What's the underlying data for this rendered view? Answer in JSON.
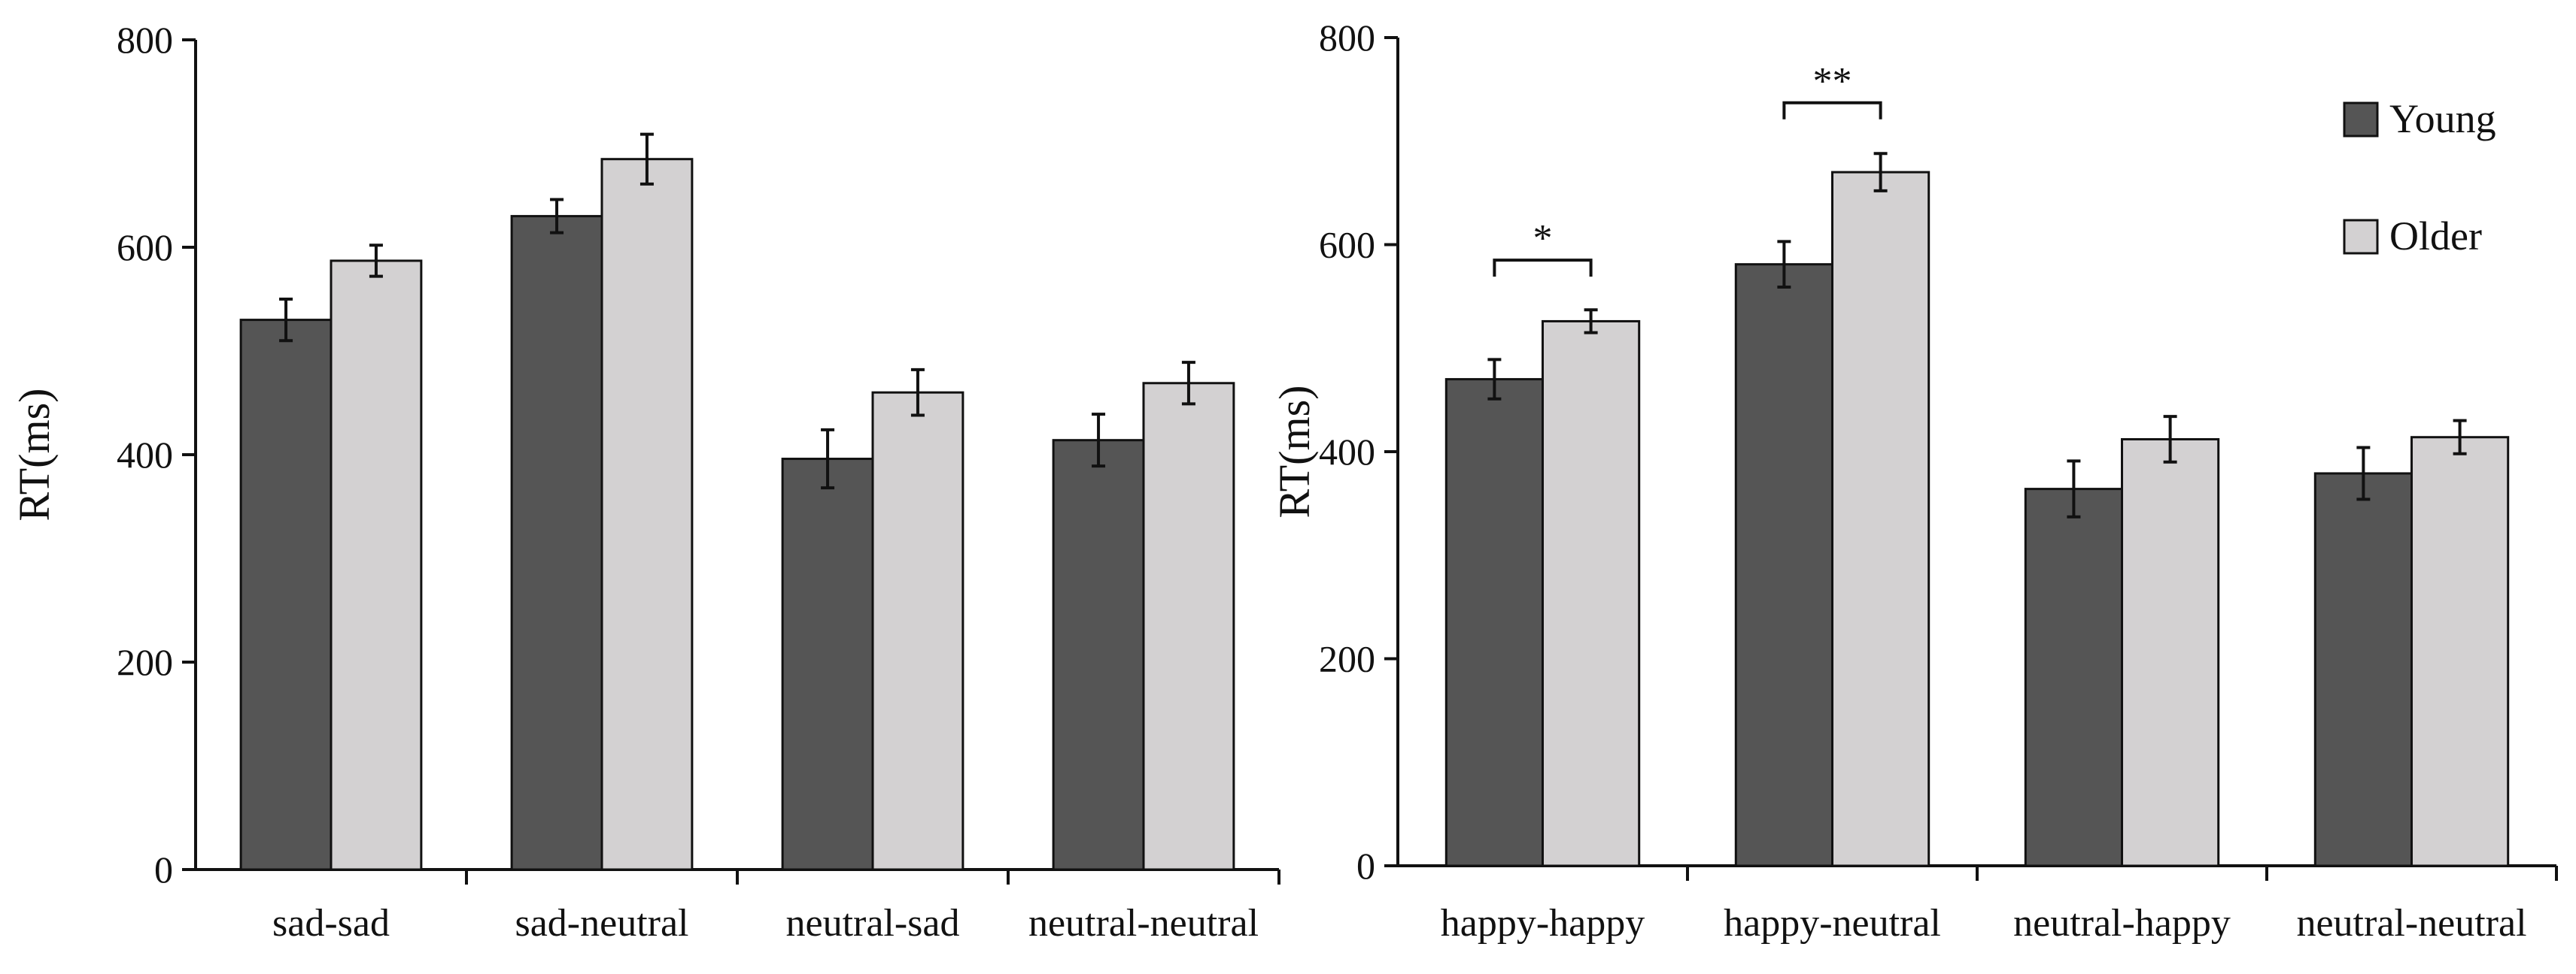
{
  "colors": {
    "young": "#555555",
    "older": "#d3d1d2",
    "stroke": "#111111"
  },
  "legend": [
    {
      "name": "Young",
      "color": "#555555"
    },
    {
      "name": "Older",
      "color": "#d3d1d2"
    }
  ],
  "chart_data": [
    {
      "type": "bar",
      "title": "",
      "xlabel": "",
      "ylabel": "RT(ms)",
      "ylim": [
        0,
        800
      ],
      "yticks": [
        0,
        200,
        400,
        600,
        800
      ],
      "categories": [
        "sad-sad",
        "sad-neutral",
        "neutral-sad",
        "neutral-neutral"
      ],
      "series": [
        {
          "name": "Young",
          "values": [
            530,
            630,
            396,
            414
          ],
          "errors": [
            20,
            16,
            28,
            25
          ]
        },
        {
          "name": "Older",
          "values": [
            587,
            685,
            460,
            469
          ],
          "errors": [
            15,
            24,
            22,
            20
          ]
        }
      ],
      "significance": [],
      "legend": "none"
    },
    {
      "type": "bar",
      "title": "",
      "xlabel": "",
      "ylabel": "RT(ms)",
      "ylim": [
        0,
        800
      ],
      "yticks": [
        0,
        200,
        400,
        600,
        800
      ],
      "categories": [
        "happy-happy",
        "happy-neutral",
        "neutral-happy",
        "neutral-neutral"
      ],
      "series": [
        {
          "name": "Young",
          "values": [
            470,
            581,
            364,
            379
          ],
          "errors": [
            19,
            22,
            27,
            25
          ]
        },
        {
          "name": "Older",
          "values": [
            526,
            670,
            412,
            414
          ],
          "errors": [
            11,
            18,
            22,
            16
          ]
        }
      ],
      "significance": [
        {
          "category_index": 0,
          "label": "*",
          "level": 585
        },
        {
          "category_index": 1,
          "label": "**",
          "level": 737
        }
      ],
      "legend": "top-right"
    }
  ]
}
